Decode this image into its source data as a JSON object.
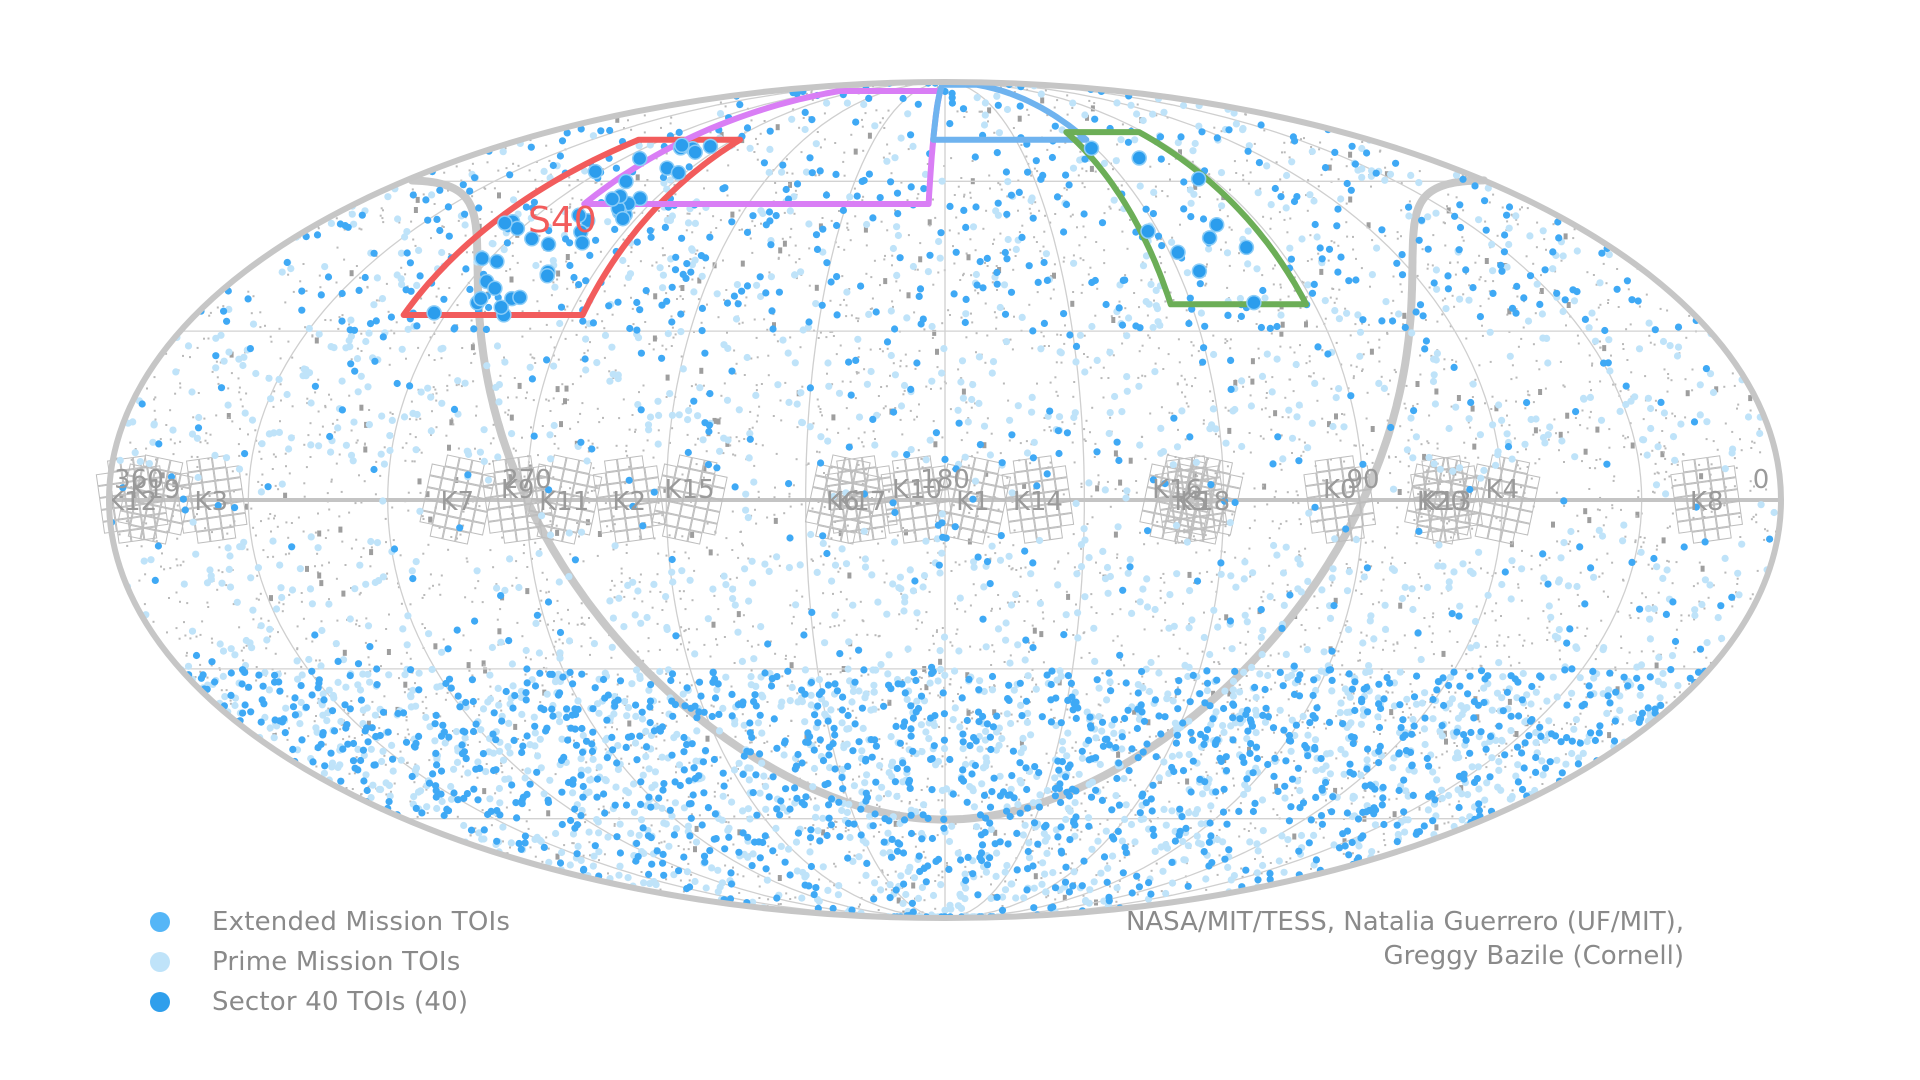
{
  "chart_data": {
    "type": "scatter",
    "projection": "mollweide",
    "coordinate_system": "ecliptic",
    "longitude_tick_labels": [
      {
        "label": "360",
        "lon": 360
      },
      {
        "label": "270",
        "lon": 270
      },
      {
        "label": "180",
        "lon": 180
      },
      {
        "label": "90",
        "lon": 90
      },
      {
        "label": "0",
        "lon": 0
      }
    ],
    "longitude_grid_step": 30,
    "latitude_grid_step": 30,
    "sector_outlines": [
      {
        "label": "S40",
        "color": "#f25c5c",
        "lon_range": [
          267,
          310
        ],
        "lat_range": [
          33,
          70
        ]
      },
      {
        "label": "",
        "color": "#d97ef5",
        "lon_range": [
          185,
          290
        ],
        "lat_range": [
          55,
          85
        ]
      },
      {
        "label": "",
        "color": "#6fb3ef",
        "lon_range": [
          120,
          185
        ],
        "lat_range": [
          70,
          88
        ]
      },
      {
        "label": "",
        "color": "#6cae57",
        "lon_range": [
          92,
          125
        ],
        "lat_range": [
          35,
          72
        ]
      }
    ],
    "k2_campaigns": [
      {
        "label": "K12",
        "lon": 355
      },
      {
        "label": "K19",
        "lon": 350
      },
      {
        "label": "K3",
        "lon": 338
      },
      {
        "label": "K7",
        "lon": 285
      },
      {
        "label": "K9",
        "lon": 272
      },
      {
        "label": "K11",
        "lon": 262
      },
      {
        "label": "K2",
        "lon": 248
      },
      {
        "label": "K15",
        "lon": 235
      },
      {
        "label": "K17",
        "lon": 198
      },
      {
        "label": "K6",
        "lon": 202
      },
      {
        "label": "K10",
        "lon": 186
      },
      {
        "label": "K1",
        "lon": 174
      },
      {
        "label": "K14",
        "lon": 160
      },
      {
        "label": "K16",
        "lon": 130
      },
      {
        "label": "K5",
        "lon": 127
      },
      {
        "label": "K18",
        "lon": 124
      },
      {
        "label": "K0",
        "lon": 95
      },
      {
        "label": "K20",
        "lon": 73
      },
      {
        "label": "K13",
        "lon": 72
      },
      {
        "label": "K4",
        "lon": 60
      },
      {
        "label": "K8",
        "lon": 16
      }
    ],
    "series": [
      {
        "name": "Extended Mission TOIs",
        "color": "#3fa9f5",
        "approx_count": 1800,
        "distribution": "concentrated toward high southern ecliptic latitudes and northern cap"
      },
      {
        "name": "Prime Mission TOIs",
        "color": "#a8dbf8",
        "approx_count": 2300,
        "distribution": "all-sky, denser toward both ecliptic poles"
      },
      {
        "name": "Sector 40 TOIs (40)",
        "color": "#2b9ded",
        "count": 40,
        "distribution": "inside the northern sector footprints"
      }
    ],
    "background_stars": {
      "color": "#b8b8b8",
      "distribution": "all-sky"
    },
    "galactic_plane": {
      "color": "#c8c8c8"
    }
  },
  "legend": {
    "items": [
      {
        "label": "Extended Mission TOIs",
        "color": "#55b6f7"
      },
      {
        "label": "Prime Mission TOIs",
        "color": "#bfe3f9"
      },
      {
        "label": "Sector 40 TOIs (40)",
        "color": "#2f9fec"
      }
    ]
  },
  "credit": {
    "line1": "NASA/MIT/TESS, Natalia Guerrero (UF/MIT),",
    "line2": "Greggy Bazile (Cornell)"
  },
  "sector_label": "S40"
}
